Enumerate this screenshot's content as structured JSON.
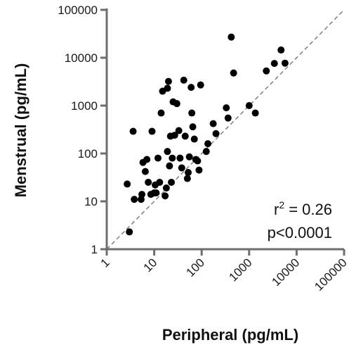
{
  "chart_data": {
    "type": "scatter",
    "xlabel": "Peripheral (pg/mL)",
    "ylabel": "Menstrual (pg/mL)",
    "xscale": "log",
    "yscale": "log",
    "xlim": [
      1,
      100000
    ],
    "ylim": [
      1,
      100000
    ],
    "x_tick_labels": [
      "1",
      "10",
      "100",
      "1000",
      "10000",
      "100000"
    ],
    "y_tick_labels": [
      "1",
      "10",
      "100",
      "1000",
      "10000",
      "100000"
    ],
    "grid": false,
    "identity_line": true,
    "annotations": {
      "r2_prefix": "r",
      "r2_sup": "2",
      "r2_value": " = 0.26",
      "p_value": "p<0.0001"
    },
    "colors": {
      "points": "#000000",
      "axes": "#6e6e6e",
      "identity_line": "#777777"
    },
    "points": [
      {
        "x": 3,
        "y": 2.3
      },
      {
        "x": 2.7,
        "y": 23
      },
      {
        "x": 3.8,
        "y": 11
      },
      {
        "x": 3.6,
        "y": 290
      },
      {
        "x": 5.3,
        "y": 11
      },
      {
        "x": 5.5,
        "y": 14
      },
      {
        "x": 5.8,
        "y": 65
      },
      {
        "x": 6.5,
        "y": 42
      },
      {
        "x": 7,
        "y": 75
      },
      {
        "x": 7.5,
        "y": 25
      },
      {
        "x": 8.5,
        "y": 14
      },
      {
        "x": 9,
        "y": 290
      },
      {
        "x": 10,
        "y": 15
      },
      {
        "x": 10.5,
        "y": 22
      },
      {
        "x": 11,
        "y": 15
      },
      {
        "x": 12,
        "y": 80
      },
      {
        "x": 13,
        "y": 25
      },
      {
        "x": 14,
        "y": 700
      },
      {
        "x": 15,
        "y": 2000
      },
      {
        "x": 17,
        "y": 13
      },
      {
        "x": 18,
        "y": 19
      },
      {
        "x": 19,
        "y": 2300
      },
      {
        "x": 19,
        "y": 110
      },
      {
        "x": 20,
        "y": 3200
      },
      {
        "x": 21,
        "y": 55
      },
      {
        "x": 22,
        "y": 230
      },
      {
        "x": 23,
        "y": 25
      },
      {
        "x": 24,
        "y": 80
      },
      {
        "x": 25,
        "y": 1200
      },
      {
        "x": 27,
        "y": 240
      },
      {
        "x": 30,
        "y": 1100
      },
      {
        "x": 33,
        "y": 300
      },
      {
        "x": 35,
        "y": 80
      },
      {
        "x": 38,
        "y": 50
      },
      {
        "x": 42,
        "y": 3400
      },
      {
        "x": 45,
        "y": 230
      },
      {
        "x": 50,
        "y": 30
      },
      {
        "x": 52,
        "y": 40
      },
      {
        "x": 55,
        "y": 85
      },
      {
        "x": 60,
        "y": 2400
      },
      {
        "x": 62,
        "y": 700
      },
      {
        "x": 65,
        "y": 360
      },
      {
        "x": 70,
        "y": 200
      },
      {
        "x": 75,
        "y": 75
      },
      {
        "x": 82,
        "y": 70
      },
      {
        "x": 88,
        "y": 45
      },
      {
        "x": 95,
        "y": 2700
      },
      {
        "x": 125,
        "y": 110
      },
      {
        "x": 135,
        "y": 160
      },
      {
        "x": 175,
        "y": 420
      },
      {
        "x": 200,
        "y": 260
      },
      {
        "x": 330,
        "y": 900
      },
      {
        "x": 360,
        "y": 550
      },
      {
        "x": 420,
        "y": 27000
      },
      {
        "x": 470,
        "y": 4800
      },
      {
        "x": 1000,
        "y": 1000
      },
      {
        "x": 1350,
        "y": 700
      },
      {
        "x": 2300,
        "y": 5300
      },
      {
        "x": 3400,
        "y": 7600
      },
      {
        "x": 4700,
        "y": 14500
      },
      {
        "x": 5700,
        "y": 7700
      }
    ]
  }
}
